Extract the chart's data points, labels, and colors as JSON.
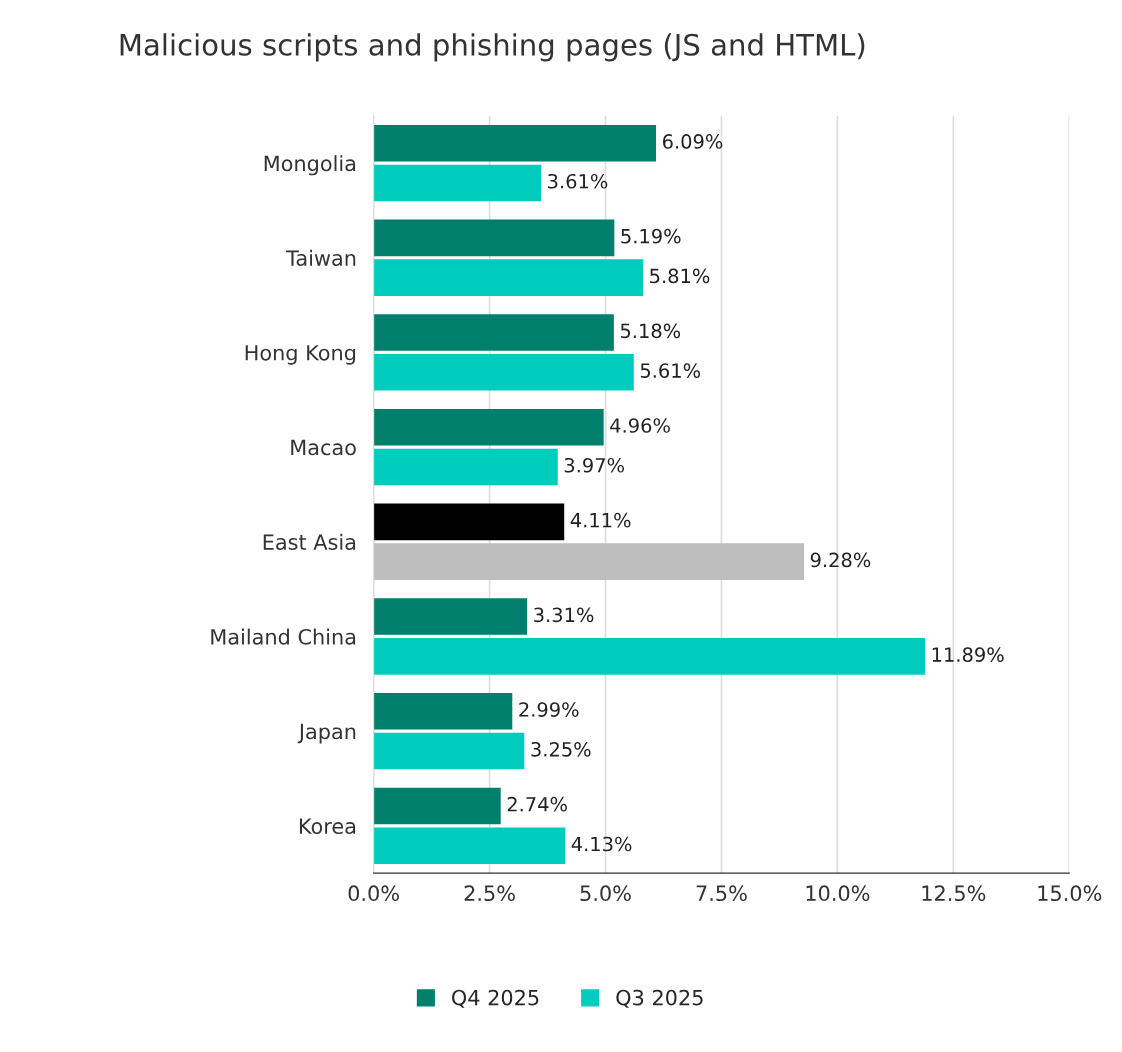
{
  "chart_data": {
    "type": "bar",
    "orientation": "horizontal",
    "title": "Malicious scripts and phishing pages (JS and HTML)",
    "categories": [
      "Mongolia",
      "Taiwan",
      "Hong Kong",
      "Macao",
      "East Asia",
      "Mailand China",
      "Japan",
      "Korea"
    ],
    "series": [
      {
        "name": "Q4 2025",
        "color": "#007f6d",
        "colors": [
          "#007f6d",
          "#007f6d",
          "#007f6d",
          "#007f6d",
          "#000000",
          "#007f6d",
          "#007f6d",
          "#007f6d"
        ],
        "values": [
          6.09,
          5.19,
          5.18,
          4.96,
          4.11,
          3.31,
          2.99,
          2.74
        ],
        "value_labels": [
          "6.09%",
          "5.19%",
          "5.18%",
          "4.96%",
          "4.11%",
          "3.31%",
          "2.99%",
          "2.74%"
        ]
      },
      {
        "name": "Q3 2025",
        "color": "#00ccbe",
        "colors": [
          "#00ccbe",
          "#00ccbe",
          "#00ccbe",
          "#00ccbe",
          "#bdbdbd",
          "#00ccbe",
          "#00ccbe",
          "#00ccbe"
        ],
        "values": [
          3.61,
          5.81,
          5.61,
          3.97,
          9.28,
          11.89,
          3.25,
          4.13
        ],
        "value_labels": [
          "3.61%",
          "5.81%",
          "5.61%",
          "3.97%",
          "9.28%",
          "11.89%",
          "3.25%",
          "4.13%"
        ]
      }
    ],
    "xlim": [
      0,
      15
    ],
    "xticks": [
      {
        "value": 0,
        "label": "0.0%"
      },
      {
        "value": 2.5,
        "label": "2.5%"
      },
      {
        "value": 5,
        "label": "5.0%"
      },
      {
        "value": 7.5,
        "label": "7.5%"
      },
      {
        "value": 10,
        "label": "10.0%"
      },
      {
        "value": 12.5,
        "label": "12.5%"
      },
      {
        "value": 15,
        "label": "15.0%"
      }
    ],
    "grid": "x",
    "legend": "bottom"
  }
}
